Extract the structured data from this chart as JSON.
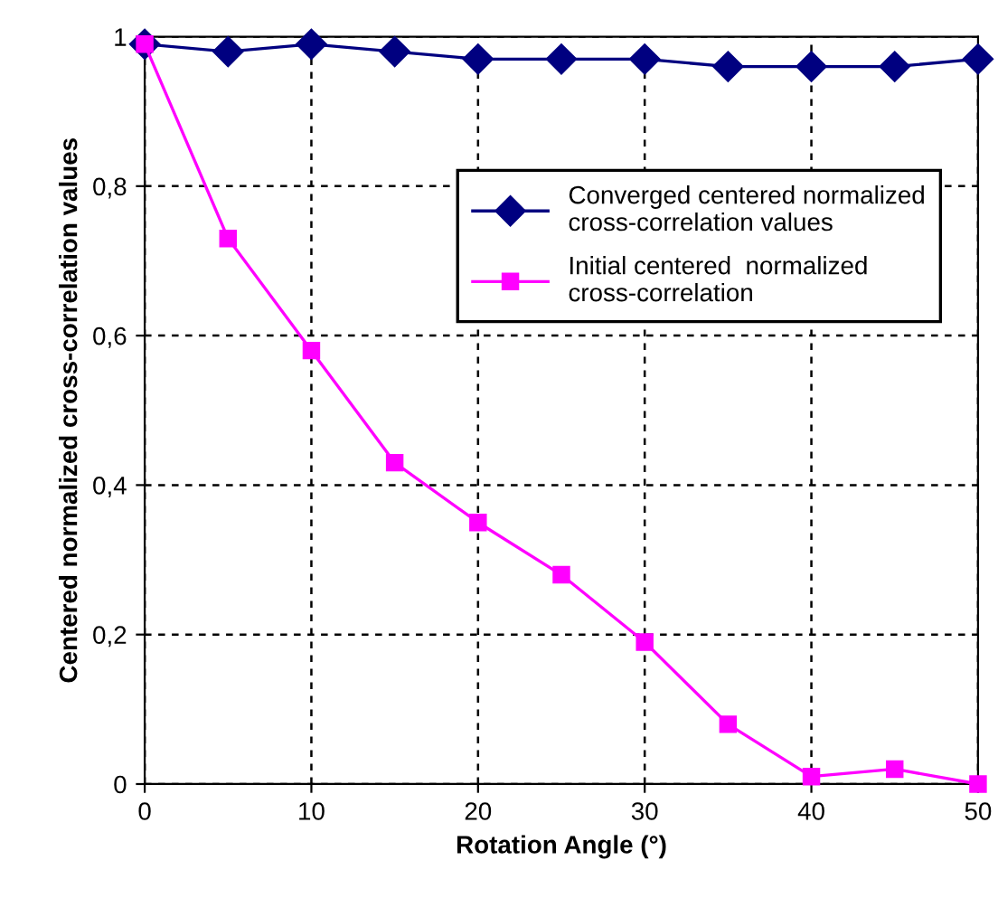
{
  "chart_data": {
    "type": "line",
    "xlabel": "Rotation Angle (°)",
    "ylabel": "Centered normalized cross-correlation values",
    "x": [
      0,
      5,
      10,
      15,
      20,
      25,
      30,
      35,
      40,
      45,
      50
    ],
    "series": [
      {
        "name": "Converged centered normalized cross-correlation values",
        "color": "#000080",
        "marker": "diamond",
        "values": [
          0.99,
          0.98,
          0.99,
          0.98,
          0.97,
          0.97,
          0.97,
          0.96,
          0.96,
          0.96,
          0.97
        ]
      },
      {
        "name": "Initial centered  normalized cross-correlation",
        "color": "#ff00ff",
        "marker": "square",
        "values": [
          0.99,
          0.73,
          0.58,
          0.43,
          0.35,
          0.28,
          0.19,
          0.08,
          0.01,
          0.02,
          0.0
        ]
      }
    ],
    "xlim": [
      0,
      50
    ],
    "xticks": [
      0,
      10,
      20,
      30,
      40,
      50
    ],
    "ylim": [
      0,
      1
    ],
    "yticks": [
      0,
      {
        "value": 0.2,
        "label": "0,2"
      },
      {
        "value": 0.4,
        "label": "0,4"
      },
      {
        "value": 0.6,
        "label": "0,6"
      },
      {
        "value": 0.8,
        "label": "0,8"
      },
      1
    ],
    "grid": true,
    "legend": "right",
    "line_style": "solid"
  }
}
